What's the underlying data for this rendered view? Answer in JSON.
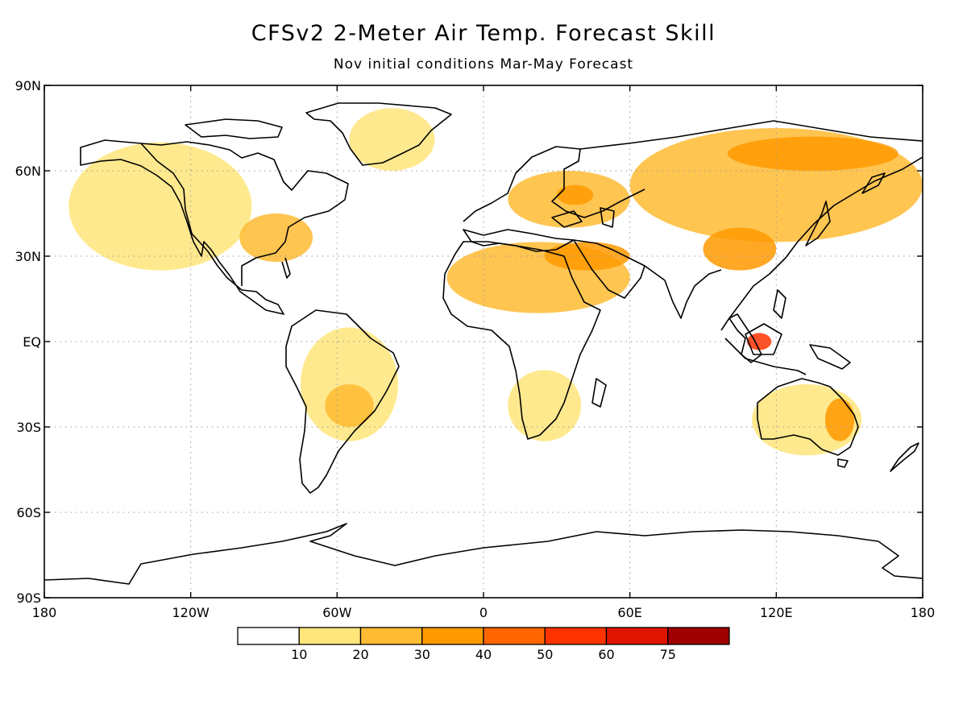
{
  "title": "CFSv2 2-Meter Air Temp. Forecast Skill",
  "subtitle": "Nov initial conditions   Mar-May Forecast",
  "map": {
    "projection": "equirectangular",
    "lon_range": [
      -180,
      180
    ],
    "lat_range": [
      -90,
      90
    ],
    "grid": true,
    "lat_ticks": [
      {
        "value": 90,
        "label": "90N"
      },
      {
        "value": 60,
        "label": "60N"
      },
      {
        "value": 30,
        "label": "30N"
      },
      {
        "value": 0,
        "label": "EQ"
      },
      {
        "value": -30,
        "label": "30S"
      },
      {
        "value": -60,
        "label": "60S"
      },
      {
        "value": -90,
        "label": "90S"
      }
    ],
    "lon_ticks": [
      {
        "value": -180,
        "label": "180"
      },
      {
        "value": -120,
        "label": "120W"
      },
      {
        "value": -60,
        "label": "60W"
      },
      {
        "value": 0,
        "label": "0"
      },
      {
        "value": 60,
        "label": "60E"
      },
      {
        "value": 120,
        "label": "120E"
      },
      {
        "value": 180,
        "label": "180"
      }
    ]
  },
  "colorbar": {
    "boxes": [
      {
        "color": "#ffffff"
      },
      {
        "color": "#ffe57a"
      },
      {
        "color": "#ffbb33"
      },
      {
        "color": "#ff9900"
      },
      {
        "color": "#ff6600"
      },
      {
        "color": "#ff3300"
      },
      {
        "color": "#e01500"
      },
      {
        "color": "#a00000"
      }
    ],
    "labels": [
      "10",
      "20",
      "30",
      "40",
      "50",
      "60",
      "75"
    ]
  },
  "chart_data": {
    "type": "heatmap",
    "title": "CFSv2 2-Meter Air Temp. Forecast Skill",
    "subtitle": "Nov initial conditions   Mar-May Forecast",
    "xlabel": "",
    "ylabel": "",
    "xlim": [
      -180,
      180
    ],
    "ylim": [
      -90,
      90
    ],
    "levels": [
      10,
      20,
      30,
      40,
      50,
      60,
      75
    ],
    "regions": [
      {
        "lon": [
          -170,
          -95
        ],
        "lat": [
          25,
          70
        ],
        "level": 10
      },
      {
        "lon": [
          -100,
          -70
        ],
        "lat": [
          28,
          45
        ],
        "level": 20
      },
      {
        "lon": [
          -75,
          -35
        ],
        "lat": [
          -35,
          5
        ],
        "level": 10
      },
      {
        "lon": [
          -65,
          -45
        ],
        "lat": [
          -30,
          -15
        ],
        "level": 20
      },
      {
        "lon": [
          -55,
          -20
        ],
        "lat": [
          60,
          82
        ],
        "level": 10
      },
      {
        "lon": [
          -15,
          60
        ],
        "lat": [
          10,
          35
        ],
        "level": 20
      },
      {
        "lon": [
          25,
          60
        ],
        "lat": [
          25,
          35
        ],
        "level": 30
      },
      {
        "lon": [
          10,
          60
        ],
        "lat": [
          40,
          60
        ],
        "level": 20
      },
      {
        "lon": [
          30,
          45
        ],
        "lat": [
          48,
          55
        ],
        "level": 30
      },
      {
        "lon": [
          60,
          180
        ],
        "lat": [
          35,
          75
        ],
        "level": 20
      },
      {
        "lon": [
          100,
          170
        ],
        "lat": [
          60,
          72
        ],
        "level": 30
      },
      {
        "lon": [
          90,
          120
        ],
        "lat": [
          25,
          40
        ],
        "level": 30
      },
      {
        "lon": [
          10,
          40
        ],
        "lat": [
          -35,
          -10
        ],
        "level": 10
      },
      {
        "lon": [
          110,
          155
        ],
        "lat": [
          -40,
          -15
        ],
        "level": 10
      },
      {
        "lon": [
          140,
          152
        ],
        "lat": [
          -35,
          -20
        ],
        "level": 30
      },
      {
        "lon": [
          108,
          118
        ],
        "lat": [
          -3,
          3
        ],
        "level": 50
      }
    ]
  }
}
